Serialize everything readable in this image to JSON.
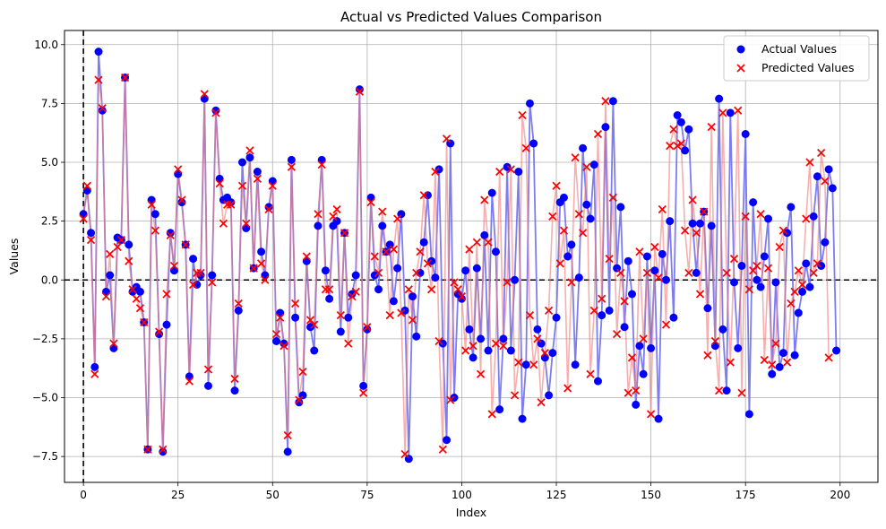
{
  "chart_data": {
    "type": "scatter",
    "title": "Actual vs Predicted Values Comparison",
    "xlabel": "Index",
    "ylabel": "Values",
    "xlim": [
      -5,
      210
    ],
    "ylim": [
      -8.6,
      10.6
    ],
    "xticks": [
      0,
      25,
      50,
      75,
      100,
      125,
      150,
      175,
      200
    ],
    "xtick_labels": [
      "0",
      "25",
      "50",
      "75",
      "100",
      "125",
      "150",
      "175",
      "200"
    ],
    "yticks": [
      -7.5,
      -5.0,
      -2.5,
      0.0,
      2.5,
      5.0,
      7.5,
      10.0
    ],
    "ytick_labels": [
      "−7.5",
      "−5.0",
      "−2.5",
      "0.0",
      "2.5",
      "5.0",
      "7.5",
      "10.0"
    ],
    "grid": true,
    "reference_lines": {
      "horizontal_y": 0,
      "vertical_x": 0
    },
    "legend": {
      "position": "top-right",
      "entries": [
        "Actual Values",
        "Predicted Values"
      ]
    },
    "colors": {
      "actual": "#0000ff",
      "predicted": "#ff0000",
      "actual_line": "#6f6fee",
      "predicted_line": "#ef7a7a",
      "overlap_line": "#b23c8c"
    },
    "series": [
      {
        "name": "Actual Values",
        "marker": "circle",
        "values": [
          2.8,
          3.8,
          2.0,
          -3.7,
          9.7,
          7.2,
          -0.5,
          0.2,
          -2.9,
          1.8,
          1.7,
          8.6,
          1.5,
          -0.5,
          -0.3,
          -0.5,
          -1.8,
          -7.2,
          3.4,
          2.8,
          -2.3,
          -7.3,
          -1.9,
          2.0,
          0.4,
          4.5,
          3.3,
          1.5,
          -4.1,
          0.9,
          -0.2,
          0.2,
          7.7,
          -4.5,
          0.2,
          7.2,
          4.3,
          3.4,
          3.5,
          3.3,
          -4.7,
          -1.3,
          5.0,
          2.2,
          5.2,
          0.5,
          4.6,
          1.2,
          0.2,
          3.1,
          4.2,
          -2.6,
          -1.4,
          -2.7,
          -7.3,
          5.1,
          -1.6,
          -5.2,
          -4.9,
          0.8,
          -2.0,
          -3.0,
          2.3,
          5.1,
          0.4,
          -0.8,
          2.3,
          2.5,
          -2.2,
          2.0,
          -1.6,
          -0.6,
          0.2,
          8.1,
          -4.5,
          -2.1,
          3.5,
          0.2,
          -0.4,
          2.3,
          1.2,
          1.5,
          -0.9,
          0.5,
          2.8,
          -1.3,
          -7.6,
          -0.7,
          -2.4,
          0.3,
          1.6,
          3.6,
          0.8,
          0.1,
          4.7,
          -2.7,
          -6.8,
          5.8,
          -5.0,
          -0.6,
          -0.8,
          0.4,
          -2.1,
          -3.3,
          0.5,
          -2.5,
          1.9,
          -3.0,
          3.7,
          1.2,
          -5.5,
          -2.5,
          4.8,
          -3.0,
          0.0,
          4.6,
          -5.9,
          -3.6,
          7.5,
          5.8,
          -2.1,
          -2.7,
          -3.3,
          -4.9,
          -3.1,
          -1.6,
          3.3,
          3.5,
          1.0,
          1.5,
          -3.6,
          0.1,
          5.6,
          3.2,
          2.6,
          4.9,
          -4.3,
          -1.5,
          6.5,
          -1.3,
          7.6,
          0.5,
          3.1,
          -2.0,
          0.8,
          -0.6,
          -5.3,
          -2.8,
          -4.0,
          1.0,
          -2.9,
          0.4,
          -5.9,
          1.1,
          0.0,
          2.5,
          -1.6,
          7.0,
          6.7,
          5.5,
          6.4,
          2.4,
          0.3,
          2.4,
          2.9,
          -1.2,
          2.3,
          -2.8,
          7.7,
          -2.1,
          -4.7,
          7.1,
          -0.1,
          -2.9,
          0.6,
          6.2,
          -5.7,
          3.3,
          0.0,
          -0.3,
          1.0,
          2.6,
          -4.0,
          -0.1,
          -3.7,
          -3.1,
          2.0,
          3.1,
          -3.2,
          -1.4,
          -0.5,
          0.7,
          -0.3,
          2.7,
          4.4,
          0.6,
          1.6,
          4.7,
          3.9,
          -3.0
        ]
      },
      {
        "name": "Predicted Values",
        "marker": "x",
        "values": [
          2.6,
          4.0,
          1.7,
          -4.0,
          8.5,
          7.3,
          -0.7,
          1.1,
          -2.7,
          1.4,
          1.7,
          8.6,
          0.8,
          -0.4,
          -0.8,
          -1.2,
          -1.8,
          -7.2,
          3.2,
          2.1,
          -2.2,
          -7.2,
          -0.6,
          1.9,
          0.6,
          4.7,
          3.4,
          1.5,
          -4.3,
          -0.2,
          0.3,
          0.3,
          7.9,
          -3.8,
          -0.1,
          7.1,
          4.1,
          2.4,
          3.2,
          3.2,
          -4.2,
          -1.0,
          4.0,
          2.4,
          5.5,
          0.5,
          4.3,
          0.7,
          0.0,
          3.0,
          4.0,
          -2.3,
          -1.6,
          -2.8,
          -6.6,
          4.8,
          -1.0,
          -5.1,
          -3.9,
          1.0,
          -1.7,
          -1.9,
          2.8,
          4.9,
          -0.4,
          -0.4,
          2.7,
          3.0,
          -1.5,
          2.0,
          -2.7,
          -0.7,
          -0.5,
          8.0,
          -4.8,
          -2.0,
          3.3,
          1.0,
          0.3,
          2.9,
          1.2,
          -1.5,
          1.3,
          2.6,
          -1.4,
          -7.4,
          -0.4,
          -1.7,
          0.3,
          1.2,
          3.6,
          0.7,
          -0.4,
          4.6,
          -2.6,
          -7.2,
          6.0,
          -5.1,
          -0.1,
          -0.4,
          -0.7,
          -3.0,
          1.3,
          -2.8,
          1.6,
          -4.0,
          3.4,
          1.6,
          -5.7,
          -2.7,
          4.6,
          -2.8,
          -0.1,
          4.7,
          -4.9,
          -3.5,
          7.0,
          5.6,
          -1.5,
          -3.6,
          -2.5,
          -5.2,
          -3.1,
          -1.3,
          2.7,
          4.0,
          0.7,
          2.1,
          -4.6,
          -0.1,
          5.2,
          2.8,
          2.0,
          4.8,
          -4.0,
          -1.3,
          6.2,
          -0.8,
          7.6,
          0.9,
          3.5,
          -2.3,
          0.3,
          -0.9,
          -4.8,
          -3.3,
          -4.7,
          1.2,
          -2.5,
          0.3,
          -5.7,
          1.4,
          0.1,
          3.0,
          -1.9,
          5.7,
          6.4,
          5.7,
          5.8,
          2.1,
          0.3,
          3.4,
          2.0,
          -0.6,
          2.9,
          -3.2,
          6.5,
          -2.6,
          -4.7,
          7.1,
          0.3,
          -3.5,
          0.9,
          7.2,
          -4.8,
          2.7,
          -0.4,
          0.4,
          0.6,
          2.8,
          -3.4,
          0.5,
          -3.6,
          -2.7,
          1.4,
          2.1,
          -3.5,
          -1.0,
          -0.5,
          0.4,
          -0.2,
          2.6,
          5.0,
          0.3,
          0.7,
          5.4,
          4.2,
          -3.3
        ]
      }
    ]
  }
}
